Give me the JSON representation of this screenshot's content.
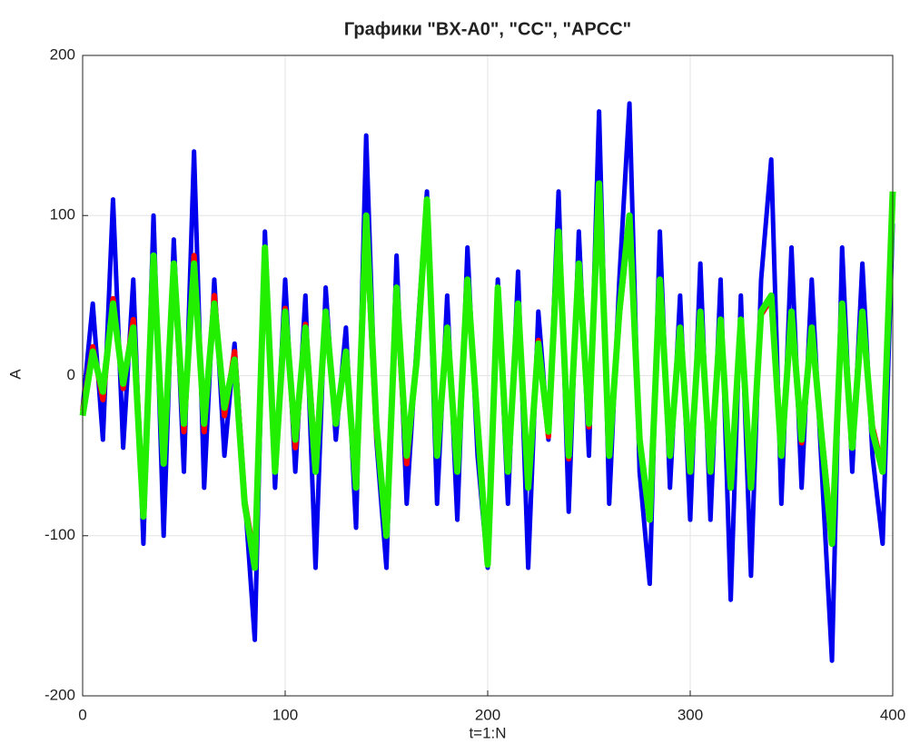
{
  "chart_data": {
    "type": "line",
    "title": "Графики \"BX-A0\", \"CC\", \"APCC\"",
    "x_label": "t=1:N",
    "y_label": "A",
    "x": [
      0,
      5,
      10,
      15,
      20,
      25,
      30,
      35,
      40,
      45,
      50,
      55,
      60,
      65,
      70,
      75,
      80,
      85,
      90,
      95,
      100,
      105,
      110,
      115,
      120,
      125,
      130,
      135,
      140,
      145,
      150,
      155,
      160,
      165,
      170,
      175,
      180,
      185,
      190,
      195,
      200,
      205,
      210,
      215,
      220,
      225,
      230,
      235,
      240,
      245,
      250,
      255,
      260,
      265,
      270,
      275,
      280,
      285,
      290,
      295,
      300,
      305,
      310,
      315,
      320,
      325,
      330,
      335,
      340,
      345,
      350,
      355,
      360,
      365,
      370,
      375,
      380,
      385,
      390,
      395,
      400
    ],
    "series": [
      {
        "color": "#0000ee",
        "values": [
          -20,
          45,
          -40,
          110,
          -45,
          60,
          -105,
          100,
          -100,
          85,
          -60,
          140,
          -70,
          60,
          -50,
          20,
          -75,
          -165,
          90,
          -70,
          60,
          -60,
          50,
          -120,
          55,
          -40,
          30,
          -95,
          150,
          -40,
          -120,
          75,
          -80,
          20,
          115,
          -80,
          50,
          -90,
          80,
          -50,
          -120,
          60,
          -80,
          65,
          -120,
          40,
          -40,
          115,
          -85,
          90,
          -50,
          165,
          -80,
          60,
          170,
          -60,
          -130,
          90,
          -70,
          50,
          -90,
          70,
          -90,
          60,
          -140,
          50,
          -125,
          60,
          135,
          -80,
          80,
          -70,
          60,
          -60,
          -178,
          80,
          -60,
          70,
          -50,
          -105,
          95
        ]
      },
      {
        "color": "#ff0000",
        "values": [
          -22,
          18,
          -15,
          48,
          -8,
          35,
          -85,
          72,
          -50,
          68,
          -35,
          75,
          -35,
          50,
          -25,
          15,
          -78,
          -115,
          78,
          -58,
          42,
          -45,
          32,
          -55,
          38,
          -28,
          12,
          -65,
          95,
          -35,
          -95,
          50,
          -55,
          12,
          108,
          -48,
          28,
          -55,
          58,
          -28,
          -115,
          52,
          -58,
          42,
          -68,
          22,
          -38,
          88,
          -52,
          68,
          -32,
          118,
          -48,
          38,
          98,
          -42,
          -88,
          58,
          -48,
          28,
          -58,
          38,
          -58,
          32,
          -68,
          32,
          -68,
          38,
          48,
          -48,
          38,
          -42,
          28,
          -38,
          -100,
          42,
          -42,
          38,
          -32,
          -58,
          112
        ]
      },
      {
        "color": "#22ee00",
        "values": [
          -25,
          15,
          -10,
          45,
          -5,
          30,
          -88,
          75,
          -55,
          70,
          -30,
          70,
          -30,
          45,
          -20,
          10,
          -80,
          -120,
          80,
          -60,
          40,
          -40,
          30,
          -60,
          40,
          -30,
          15,
          -70,
          100,
          -30,
          -100,
          55,
          -50,
          10,
          110,
          -50,
          30,
          -60,
          60,
          -30,
          -118,
          55,
          -60,
          45,
          -70,
          20,
          -35,
          90,
          -50,
          70,
          -30,
          120,
          -50,
          40,
          100,
          -40,
          -90,
          60,
          -50,
          30,
          -60,
          40,
          -60,
          35,
          -70,
          35,
          -70,
          40,
          50,
          -50,
          40,
          -40,
          30,
          -40,
          -105,
          45,
          -45,
          40,
          -35,
          -60,
          115
        ]
      }
    ],
    "xlim": [
      0,
      400
    ],
    "ylim": [
      -200,
      200
    ],
    "xticks": [
      0,
      100,
      200,
      300,
      400
    ],
    "yticks": [
      -200,
      -100,
      0,
      100,
      200
    ],
    "grid": true
  }
}
